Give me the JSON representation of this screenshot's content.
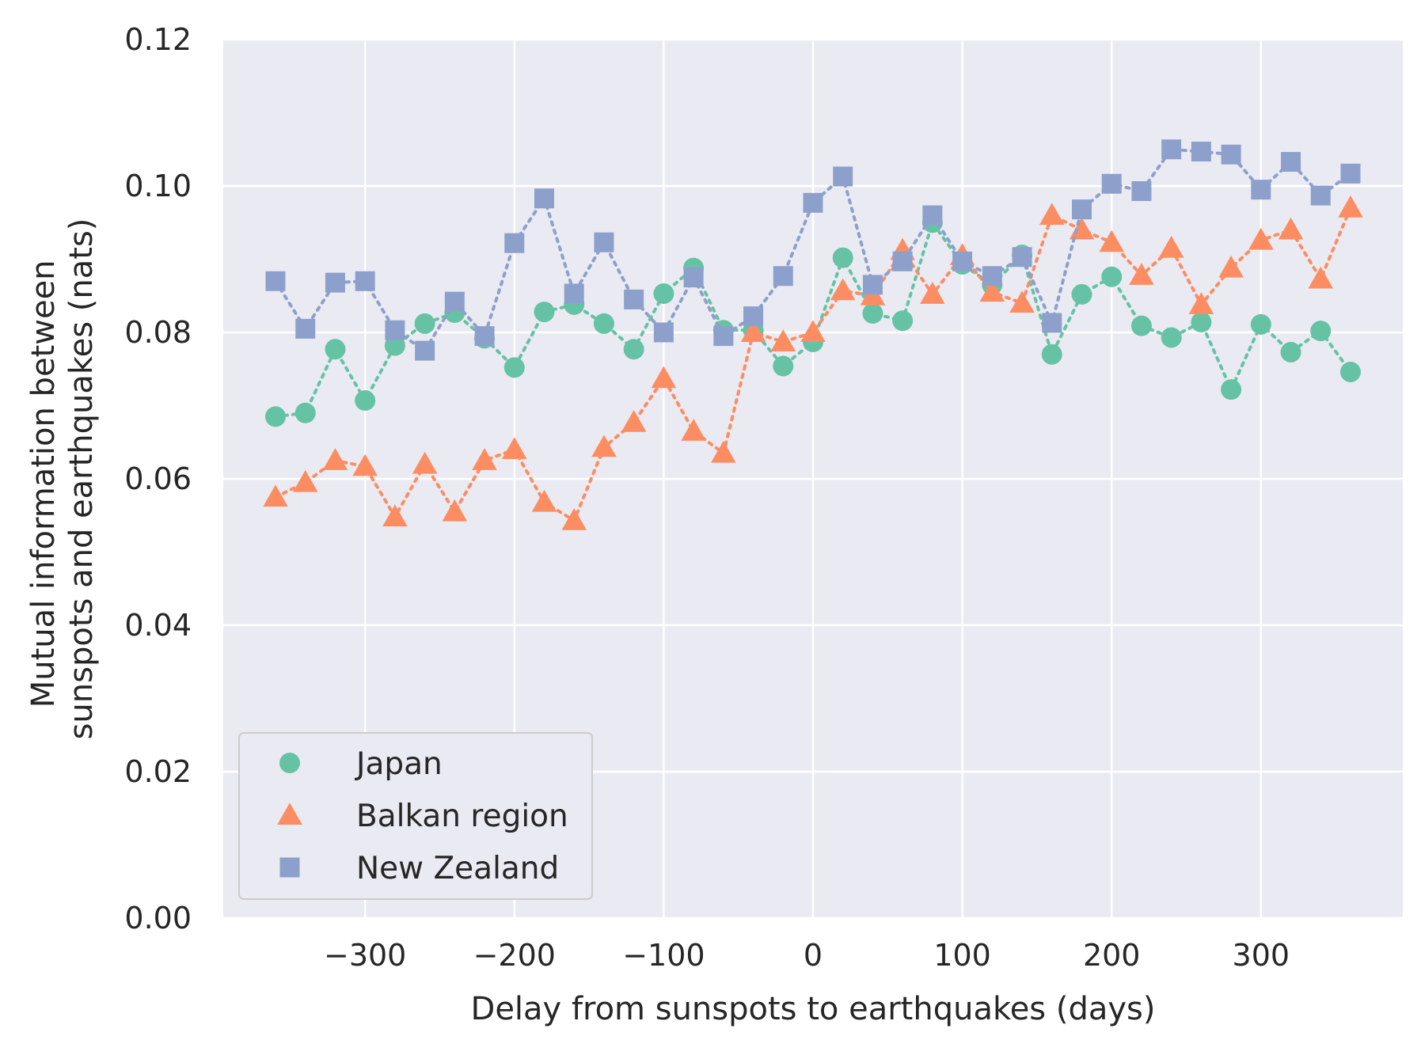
{
  "chart_data": {
    "type": "scatter",
    "title": "",
    "xlabel": "Delay from sunspots to earthquakes (days)",
    "ylabel_lines": [
      "Mutual information between",
      "sunspots and earthquakes (nats)"
    ],
    "xlim": [
      -395,
      395
    ],
    "ylim": [
      0,
      0.12
    ],
    "x_ticks": [
      -300,
      -200,
      -100,
      0,
      100,
      200,
      300
    ],
    "x_tick_labels": [
      "−300",
      "−200",
      "−100",
      "0",
      "100",
      "200",
      "300"
    ],
    "y_ticks": [
      0,
      0.02,
      0.04,
      0.06,
      0.08,
      0.1,
      0.12
    ],
    "y_tick_labels": [
      "0.00",
      "0.02",
      "0.04",
      "0.06",
      "0.08",
      "0.10",
      "0.12"
    ],
    "grid": true,
    "legend_position": "lower-left",
    "x": [
      -360,
      -340,
      -320,
      -300,
      -280,
      -260,
      -240,
      -220,
      -200,
      -180,
      -160,
      -140,
      -120,
      -100,
      -80,
      -60,
      -40,
      -20,
      0,
      20,
      40,
      60,
      80,
      100,
      120,
      140,
      160,
      180,
      200,
      220,
      240,
      260,
      280,
      300,
      320,
      340,
      360
    ],
    "series": [
      {
        "name": "Japan",
        "marker": "circle",
        "color": "#66c2a5",
        "values": [
          0.0685,
          0.069,
          0.0777,
          0.0707,
          0.0782,
          0.0812,
          0.0827,
          0.0792,
          0.0752,
          0.0828,
          0.0838,
          0.0812,
          0.0777,
          0.0853,
          0.0888,
          0.0803,
          0.0803,
          0.0754,
          0.0787,
          0.0902,
          0.0826,
          0.0816,
          0.095,
          0.0893,
          0.0865,
          0.0906,
          0.077,
          0.0852,
          0.0876,
          0.0809,
          0.0793,
          0.0814,
          0.0722,
          0.0811,
          0.0773,
          0.0802,
          0.0746
        ]
      },
      {
        "name": "Balkan region",
        "marker": "triangle",
        "color": "#fc8d62",
        "values": [
          0.0575,
          0.0595,
          0.0625,
          0.0617,
          0.0548,
          0.062,
          0.0555,
          0.0625,
          0.064,
          0.0568,
          0.0543,
          0.0643,
          0.0677,
          0.0737,
          0.0665,
          0.0635,
          0.08,
          0.0787,
          0.08,
          0.0857,
          0.085,
          0.0912,
          0.0852,
          0.0905,
          0.0855,
          0.084,
          0.096,
          0.094,
          0.0923,
          0.0878,
          0.0915,
          0.0838,
          0.0888,
          0.0926,
          0.094,
          0.0873,
          0.097
        ]
      },
      {
        "name": "New Zealand",
        "marker": "square",
        "color": "#8da0cb",
        "values": [
          0.087,
          0.0805,
          0.0868,
          0.087,
          0.0803,
          0.0775,
          0.0842,
          0.0795,
          0.0922,
          0.0983,
          0.0853,
          0.0923,
          0.0845,
          0.08,
          0.0875,
          0.0795,
          0.0822,
          0.0877,
          0.0977,
          0.1013,
          0.0865,
          0.0897,
          0.096,
          0.0897,
          0.0877,
          0.0903,
          0.0813,
          0.0968,
          0.1003,
          0.0993,
          0.105,
          0.1047,
          0.1043,
          0.0995,
          0.1033,
          0.0987,
          0.1017
        ]
      }
    ]
  }
}
